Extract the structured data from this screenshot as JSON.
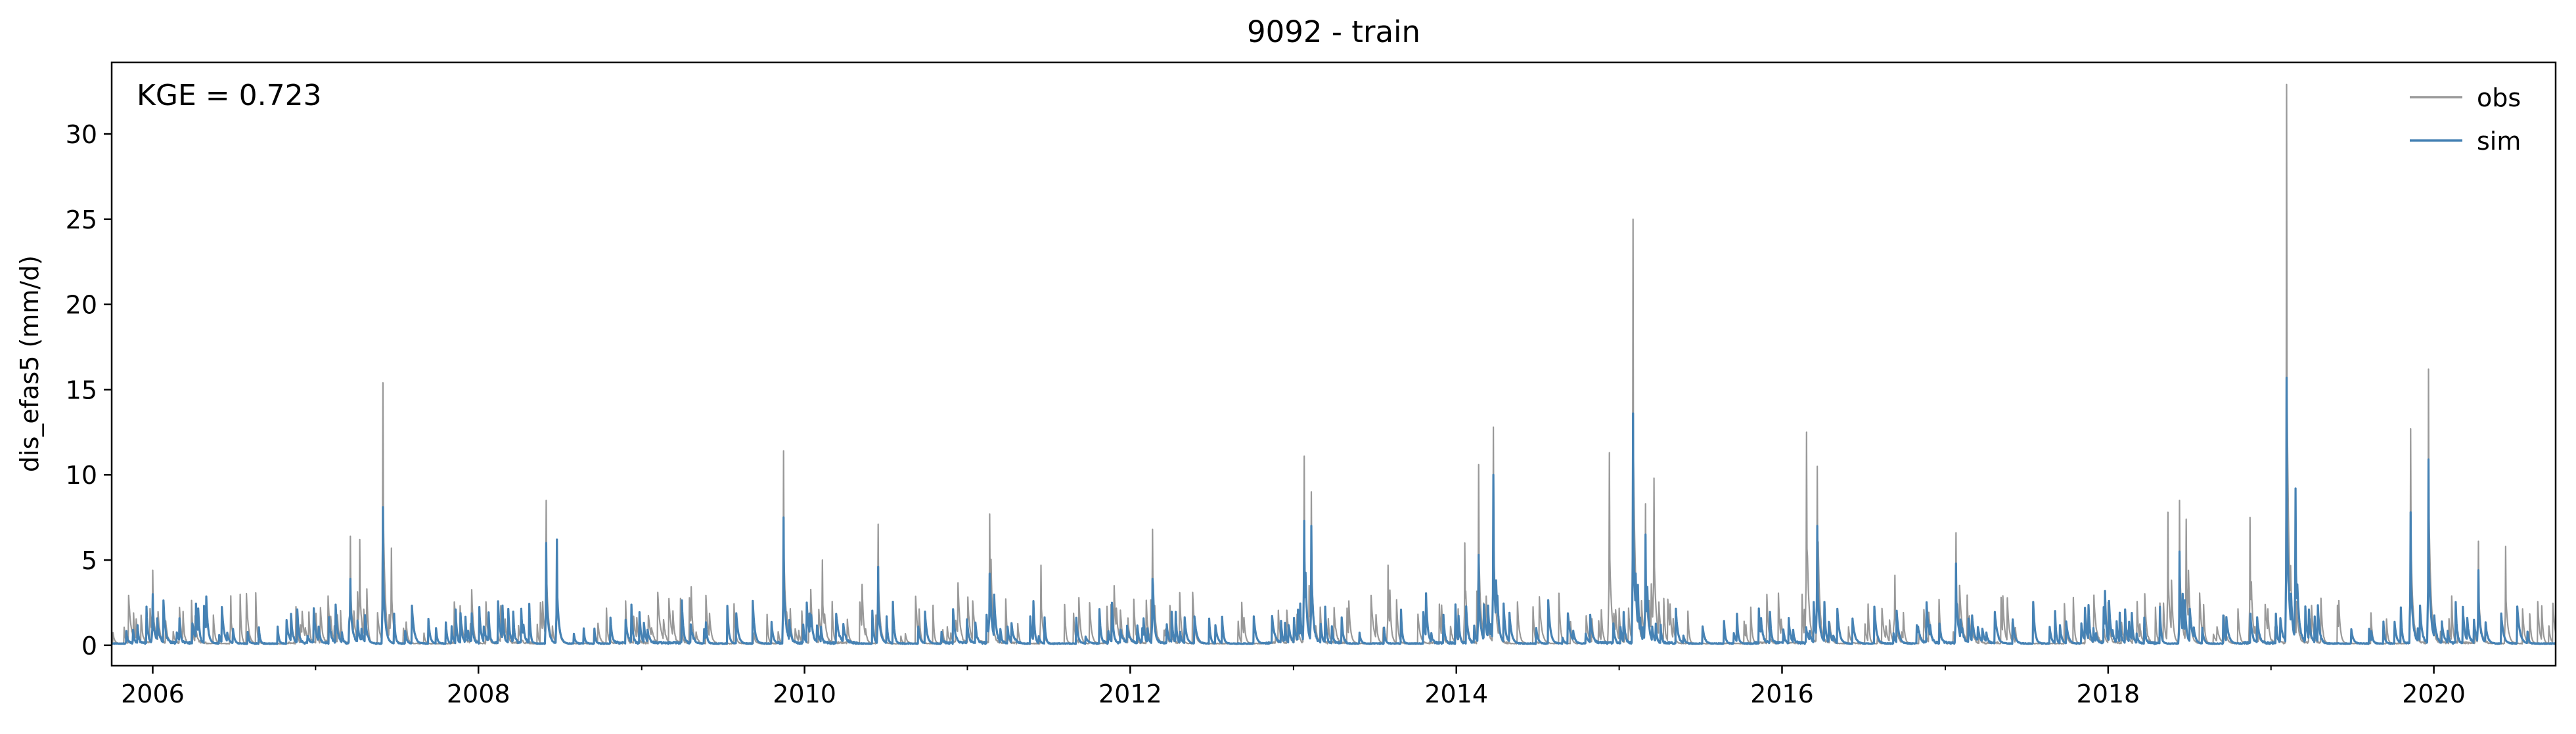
{
  "chart_data": {
    "type": "line",
    "title": "9092 - train",
    "xlabel": "",
    "ylabel": "dis_efas5 (mm/d)",
    "annotation": "KGE = 0.723",
    "xlim": [
      "2005-10-01",
      "2020-09-30"
    ],
    "ylim": [
      -1.2,
      34.2
    ],
    "x_ticks": [
      {
        "date": "2006-01-01",
        "label": "2006"
      },
      {
        "date": "2008-01-01",
        "label": "2008"
      },
      {
        "date": "2010-01-01",
        "label": "2010"
      },
      {
        "date": "2012-01-01",
        "label": "2012"
      },
      {
        "date": "2014-01-01",
        "label": "2014"
      },
      {
        "date": "2016-01-01",
        "label": "2016"
      },
      {
        "date": "2018-01-01",
        "label": "2018"
      },
      {
        "date": "2020-01-01",
        "label": "2020"
      }
    ],
    "y_ticks": [
      0,
      5,
      10,
      15,
      20,
      25,
      30
    ],
    "grid": false,
    "legend": {
      "placement": "top-right"
    },
    "series": [
      {
        "name": "obs",
        "color": "#999999",
        "peaks": [
          {
            "date": "2006-01-01",
            "value": 4.4
          },
          {
            "date": "2006-06-25",
            "value": 2.9
          },
          {
            "date": "2007-03-20",
            "value": 6.4
          },
          {
            "date": "2007-04-10",
            "value": 6.2
          },
          {
            "date": "2007-06-01",
            "value": 15.4
          },
          {
            "date": "2007-06-20",
            "value": 5.7
          },
          {
            "date": "2008-06-01",
            "value": 8.5
          },
          {
            "date": "2008-06-25",
            "value": 5.0
          },
          {
            "date": "2009-11-15",
            "value": 11.4
          },
          {
            "date": "2010-02-10",
            "value": 5.0
          },
          {
            "date": "2010-06-15",
            "value": 7.1
          },
          {
            "date": "2011-02-20",
            "value": 7.7
          },
          {
            "date": "2011-06-15",
            "value": 4.7
          },
          {
            "date": "2012-02-20",
            "value": 6.8
          },
          {
            "date": "2013-01-25",
            "value": 11.1
          },
          {
            "date": "2013-02-10",
            "value": 9.0
          },
          {
            "date": "2013-08-01",
            "value": 4.7
          },
          {
            "date": "2014-01-20",
            "value": 6.0
          },
          {
            "date": "2014-02-20",
            "value": 10.6
          },
          {
            "date": "2014-03-25",
            "value": 12.8
          },
          {
            "date": "2014-12-10",
            "value": 11.3
          },
          {
            "date": "2015-02-01",
            "value": 25.0
          },
          {
            "date": "2015-03-01",
            "value": 8.3
          },
          {
            "date": "2015-03-20",
            "value": 9.8
          },
          {
            "date": "2016-02-25",
            "value": 12.5
          },
          {
            "date": "2016-03-20",
            "value": 10.5
          },
          {
            "date": "2016-09-10",
            "value": 4.1
          },
          {
            "date": "2017-01-25",
            "value": 6.6
          },
          {
            "date": "2018-05-15",
            "value": 7.8
          },
          {
            "date": "2018-06-10",
            "value": 8.5
          },
          {
            "date": "2018-06-25",
            "value": 7.4
          },
          {
            "date": "2018-11-15",
            "value": 7.5
          },
          {
            "date": "2019-02-05",
            "value": 32.9
          },
          {
            "date": "2019-11-10",
            "value": 12.7
          },
          {
            "date": "2019-12-20",
            "value": 16.2
          },
          {
            "date": "2020-04-10",
            "value": 6.1
          },
          {
            "date": "2020-06-10",
            "value": 5.8
          }
        ]
      },
      {
        "name": "sim",
        "color": "#4682b4",
        "peaks": [
          {
            "date": "2006-01-01",
            "value": 3.0
          },
          {
            "date": "2007-03-20",
            "value": 3.9
          },
          {
            "date": "2007-06-01",
            "value": 8.1
          },
          {
            "date": "2008-06-01",
            "value": 6.0
          },
          {
            "date": "2008-06-25",
            "value": 6.2
          },
          {
            "date": "2009-11-15",
            "value": 7.5
          },
          {
            "date": "2010-06-15",
            "value": 4.6
          },
          {
            "date": "2011-02-20",
            "value": 4.2
          },
          {
            "date": "2012-02-20",
            "value": 3.9
          },
          {
            "date": "2013-01-25",
            "value": 7.3
          },
          {
            "date": "2013-02-10",
            "value": 7.0
          },
          {
            "date": "2014-02-20",
            "value": 5.3
          },
          {
            "date": "2014-03-25",
            "value": 10.0
          },
          {
            "date": "2015-02-01",
            "value": 13.6
          },
          {
            "date": "2015-03-01",
            "value": 6.5
          },
          {
            "date": "2016-03-20",
            "value": 7.0
          },
          {
            "date": "2017-01-25",
            "value": 4.8
          },
          {
            "date": "2018-06-10",
            "value": 5.5
          },
          {
            "date": "2019-02-05",
            "value": 15.7
          },
          {
            "date": "2019-02-25",
            "value": 9.2
          },
          {
            "date": "2019-11-10",
            "value": 7.8
          },
          {
            "date": "2019-12-20",
            "value": 10.9
          },
          {
            "date": "2020-04-10",
            "value": 4.4
          }
        ]
      }
    ]
  }
}
